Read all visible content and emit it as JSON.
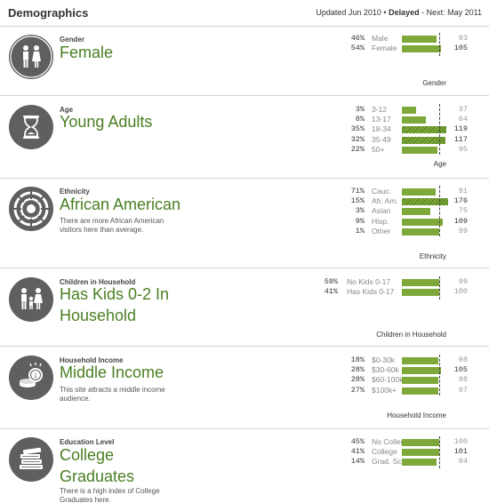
{
  "header": {
    "title": "Demographics",
    "updated": "Updated Jun 2010",
    "separator": "•",
    "status": "Delayed",
    "next": "- Next: May 2011"
  },
  "colors": {
    "accent": "#4a7f22",
    "bar": "#7fa83a",
    "icon_bg": "#5f5f5f"
  },
  "sections": [
    {
      "icon": "people-gender-icon",
      "category": "Gender",
      "value": "Female",
      "description": "",
      "chart_label": "Gender",
      "rows": [
        {
          "pct": "46%",
          "label": "Male",
          "index": "93",
          "fraction": 0.46,
          "above": false
        },
        {
          "pct": "54%",
          "label": "Female",
          "index": "105",
          "fraction": 0.54,
          "above": true
        }
      ]
    },
    {
      "icon": "hourglass-icon",
      "category": "Age",
      "value": "Young Adults",
      "description": "",
      "chart_label": "Age",
      "rows": [
        {
          "pct": "3%",
          "label": "3-12",
          "index": "37",
          "fraction": 0.03,
          "above": false
        },
        {
          "pct": "8%",
          "label": "13-17",
          "index": "64",
          "fraction": 0.08,
          "above": false
        },
        {
          "pct": "35%",
          "label": "18-34",
          "index": "119",
          "fraction": 0.35,
          "above": true
        },
        {
          "pct": "32%",
          "label": "35-49",
          "index": "117",
          "fraction": 0.32,
          "above": true
        },
        {
          "pct": "22%",
          "label": "50+",
          "index": "95",
          "fraction": 0.22,
          "above": false
        }
      ]
    },
    {
      "icon": "ethnicity-wheel-icon",
      "category": "Ethnicity",
      "value": "African American",
      "description": "There are more African American visitors here than average.",
      "chart_label": "Ethnicity",
      "rows": [
        {
          "pct": "71%",
          "label": "Cauc.",
          "index": "91",
          "fraction": 0.71,
          "above": false
        },
        {
          "pct": "15%",
          "label": "Afr. Am.",
          "index": "176",
          "fraction": 0.15,
          "above": true
        },
        {
          "pct": "3%",
          "label": "Asian",
          "index": "75",
          "fraction": 0.03,
          "above": false
        },
        {
          "pct": "9%",
          "label": "Hisp.",
          "index": "109",
          "fraction": 0.09,
          "above": true
        },
        {
          "pct": "1%",
          "label": "Other",
          "index": "99",
          "fraction": 0.01,
          "above": false
        }
      ]
    },
    {
      "icon": "family-icon",
      "category": "Children in Household",
      "value": "Has Kids 0-2 In Household",
      "description": "",
      "chart_label": "Children in Household",
      "rows": [
        {
          "pct": "59%",
          "label": "No Kids 0-17",
          "index": "99",
          "fraction": 0.59,
          "above": false
        },
        {
          "pct": "41%",
          "label": "Has Kids 0-17",
          "index": "100",
          "fraction": 0.41,
          "above": false
        }
      ]
    },
    {
      "icon": "coins-icon",
      "category": "Household Income",
      "value": "Middle Income",
      "description": "This site attracts a middle income audience.",
      "chart_label": "Household Income",
      "rows": [
        {
          "pct": "18%",
          "label": "$0-30k",
          "index": "98",
          "fraction": 0.18,
          "above": false
        },
        {
          "pct": "28%",
          "label": "$30-60k",
          "index": "105",
          "fraction": 0.28,
          "above": true
        },
        {
          "pct": "28%",
          "label": "$60-100k",
          "index": "98",
          "fraction": 0.28,
          "above": false
        },
        {
          "pct": "27%",
          "label": "$100k+",
          "index": "97",
          "fraction": 0.27,
          "above": false
        }
      ]
    },
    {
      "icon": "books-icon",
      "category": "Education Level",
      "value": "College Graduates",
      "description": "There is a high index of College Graduates here.",
      "chart_label": "",
      "rows": [
        {
          "pct": "45%",
          "label": "No College",
          "index": "100",
          "fraction": 0.45,
          "above": false
        },
        {
          "pct": "41%",
          "label": "College",
          "index": "101",
          "fraction": 0.41,
          "above": true
        },
        {
          "pct": "14%",
          "label": "Grad. Sch.",
          "index": "94",
          "fraction": 0.14,
          "above": false
        }
      ]
    }
  ]
}
